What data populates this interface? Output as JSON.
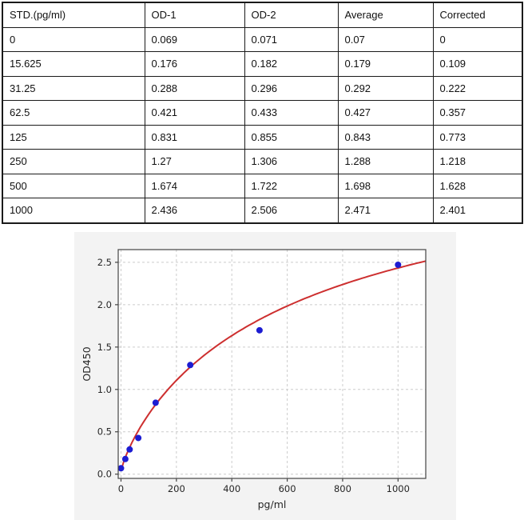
{
  "table": {
    "columns": [
      "STD.(pg/ml)",
      "OD-1",
      "OD-2",
      "Average",
      "Corrected"
    ],
    "rows": [
      [
        "0",
        "0.069",
        "0.071",
        "0.07",
        "0"
      ],
      [
        "15.625",
        "0.176",
        "0.182",
        "0.179",
        "0.109"
      ],
      [
        "31.25",
        "0.288",
        "0.296",
        "0.292",
        "0.222"
      ],
      [
        "62.5",
        "0.421",
        "0.433",
        "0.427",
        "0.357"
      ],
      [
        "125",
        "0.831",
        "0.855",
        "0.843",
        "0.773"
      ],
      [
        "250",
        "1.27",
        "1.306",
        "1.288",
        "1.218"
      ],
      [
        "500",
        "1.674",
        "1.722",
        "1.698",
        "1.628"
      ],
      [
        "1000",
        "2.436",
        "2.506",
        "2.471",
        "2.401"
      ]
    ]
  },
  "chart_data": {
    "type": "scatter",
    "title": "",
    "xlabel": "pg/ml",
    "ylabel": "OD450",
    "x": [
      0,
      15.625,
      31.25,
      62.5,
      125,
      250,
      500,
      1000
    ],
    "series": [
      {
        "name": "standard-points",
        "type": "scatter",
        "values": [
          0.07,
          0.179,
          0.292,
          0.427,
          0.843,
          1.288,
          1.698,
          2.471
        ],
        "color": "#1c1cd2",
        "marker_radius": 4
      },
      {
        "name": "fitted-curve",
        "type": "line",
        "color": "#cd2f2f",
        "width": 2,
        "fit": {
          "model": "4PL",
          "a": 0.04,
          "b": 0.85,
          "c": 700,
          "d": 4.2,
          "x_from": 0,
          "x_to": 1100
        }
      }
    ],
    "x_ticks": [
      0,
      200,
      400,
      600,
      800,
      1000
    ],
    "y_ticks": [
      0.0,
      0.5,
      1.0,
      1.5,
      2.0,
      2.5
    ],
    "xlim": [
      -10,
      1100
    ],
    "ylim": [
      -0.05,
      2.65
    ],
    "grid": true,
    "legend": false,
    "style": {
      "figure_bg": "#f3f3f3",
      "plot_bg": "#ffffff",
      "grid_color": "#cccccc",
      "spine_color": "#444444",
      "tick_text_color": "#262626"
    }
  }
}
